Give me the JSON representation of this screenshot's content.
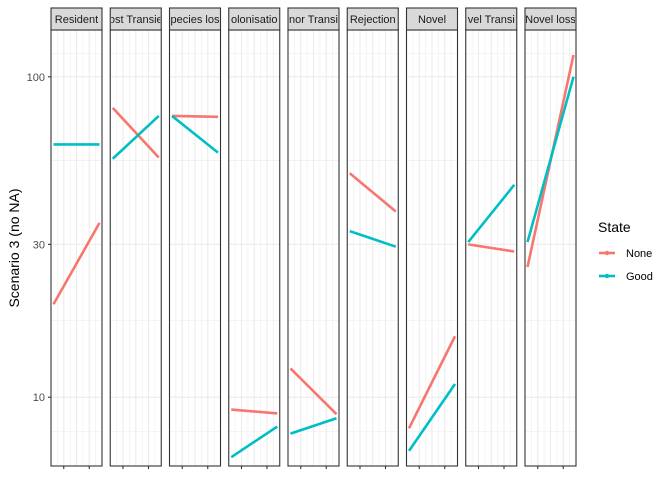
{
  "chart_data": {
    "type": "line",
    "ylabel": "Scenario 3 (no NA)",
    "xlabel": "",
    "y_scale": "log",
    "ylim": [
      6.1,
      140
    ],
    "y_ticks": [
      10,
      30,
      100
    ],
    "y_tick_labels": [
      "10",
      "30",
      "100"
    ],
    "grid": true,
    "legend": {
      "title": "State",
      "position": "right"
    },
    "colors": {
      "None": "#F8766D",
      "Good": "#00BFC4"
    },
    "panels": [
      {
        "label": "Resident",
        "series": [
          {
            "name": "None",
            "values": [
              19.5,
              35
            ]
          },
          {
            "name": "Good",
            "values": [
              61.5,
              61.5
            ]
          }
        ]
      },
      {
        "label": "ost Transie",
        "series": [
          {
            "name": "None",
            "values": [
              80,
              56
            ]
          },
          {
            "name": "Good",
            "values": [
              55.5,
              75.5
            ]
          }
        ]
      },
      {
        "label": "pecies los",
        "series": [
          {
            "name": "None",
            "values": [
              75.5,
              75
            ]
          },
          {
            "name": "Good",
            "values": [
              75.5,
              58
            ]
          }
        ]
      },
      {
        "label": "olonisatio",
        "series": [
          {
            "name": "None",
            "values": [
              9.15,
              8.9
            ]
          },
          {
            "name": "Good",
            "values": [
              6.5,
              8.1
            ]
          }
        ]
      },
      {
        "label": "nor Transi",
        "series": [
          {
            "name": "None",
            "values": [
              12.3,
              8.85
            ]
          },
          {
            "name": "Good",
            "values": [
              7.7,
              8.6
            ]
          }
        ]
      },
      {
        "label": "Rejection",
        "series": [
          {
            "name": "None",
            "values": [
              50,
              38
            ]
          },
          {
            "name": "Good",
            "values": [
              33,
              29.5
            ]
          }
        ]
      },
      {
        "label": "Novel",
        "series": [
          {
            "name": "None",
            "values": [
              8,
              15.5
            ]
          },
          {
            "name": "Good",
            "values": [
              6.8,
              11
            ]
          }
        ]
      },
      {
        "label": "vel Transi",
        "series": [
          {
            "name": "None",
            "values": [
              30,
              28.5
            ]
          },
          {
            "name": "Good",
            "values": [
              30.5,
              46
            ]
          }
        ]
      },
      {
        "label": "Novel loss",
        "series": [
          {
            "name": "None",
            "values": [
              25.5,
              117
            ]
          },
          {
            "name": "Good",
            "values": [
              30.5,
              100
            ]
          }
        ]
      }
    ]
  }
}
